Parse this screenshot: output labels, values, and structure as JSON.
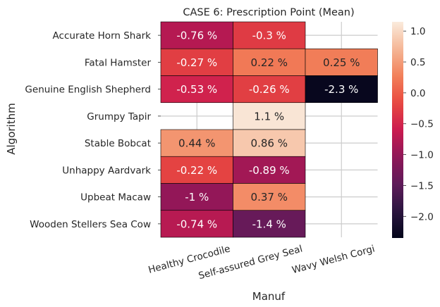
{
  "chart_data": {
    "type": "heatmap",
    "title": "CASE 6: Prescription Point (Mean)",
    "xlabel": "Manuf",
    "ylabel": "Algorithm",
    "x_categories": [
      "Healthy Crocodile",
      "Self-assured Grey Seal",
      "Wavy Welsh Corgi"
    ],
    "y_categories": [
      "Accurate Horn Shark",
      "Fatal Hamster",
      "Genuine English Shepherd",
      "Grumpy Tapir",
      "Stable Bobcat",
      "Unhappy Aardvark",
      "Upbeat Macaw",
      "Wooden Stellers Sea Cow"
    ],
    "values": [
      [
        -0.76,
        -0.3,
        null
      ],
      [
        -0.27,
        0.22,
        0.25
      ],
      [
        -0.53,
        -0.26,
        -2.3
      ],
      [
        null,
        1.1,
        null
      ],
      [
        0.44,
        0.86,
        null
      ],
      [
        -0.22,
        -0.89,
        null
      ],
      [
        -1.0,
        0.37,
        null
      ],
      [
        -0.74,
        -1.4,
        null
      ]
    ],
    "annotations": [
      [
        "-0.76 %",
        "-0.3 %",
        ""
      ],
      [
        "-0.27 %",
        "0.22 %",
        "0.25 %"
      ],
      [
        "-0.53 %",
        "-0.26 %",
        "-2.3 %"
      ],
      [
        "",
        "1.1 %",
        ""
      ],
      [
        "0.44 %",
        "0.86 %",
        ""
      ],
      [
        "-0.22 %",
        "-0.89 %",
        ""
      ],
      [
        "-1 %",
        "0.37 %",
        ""
      ],
      [
        "-0.74 %",
        "-1.4 %",
        ""
      ]
    ],
    "colormap": "rocket",
    "vmin": -2.35,
    "vmax": 1.15,
    "colorbar_ticks": [
      1.0,
      0.5,
      0.0,
      -0.5,
      -1.0,
      -1.5,
      -2.0
    ],
    "colorbar_tick_labels": [
      "1.0",
      "0.5",
      "0.0",
      "−0.5",
      "−1.0",
      "−1.5",
      "−2.0"
    ],
    "x_tick_rotation_deg": -15,
    "grid": true,
    "colors": {
      "grid": "#cccccc",
      "cell_edge": "#000000",
      "text_dark": "#262626",
      "text_light": "#ffffff"
    }
  }
}
